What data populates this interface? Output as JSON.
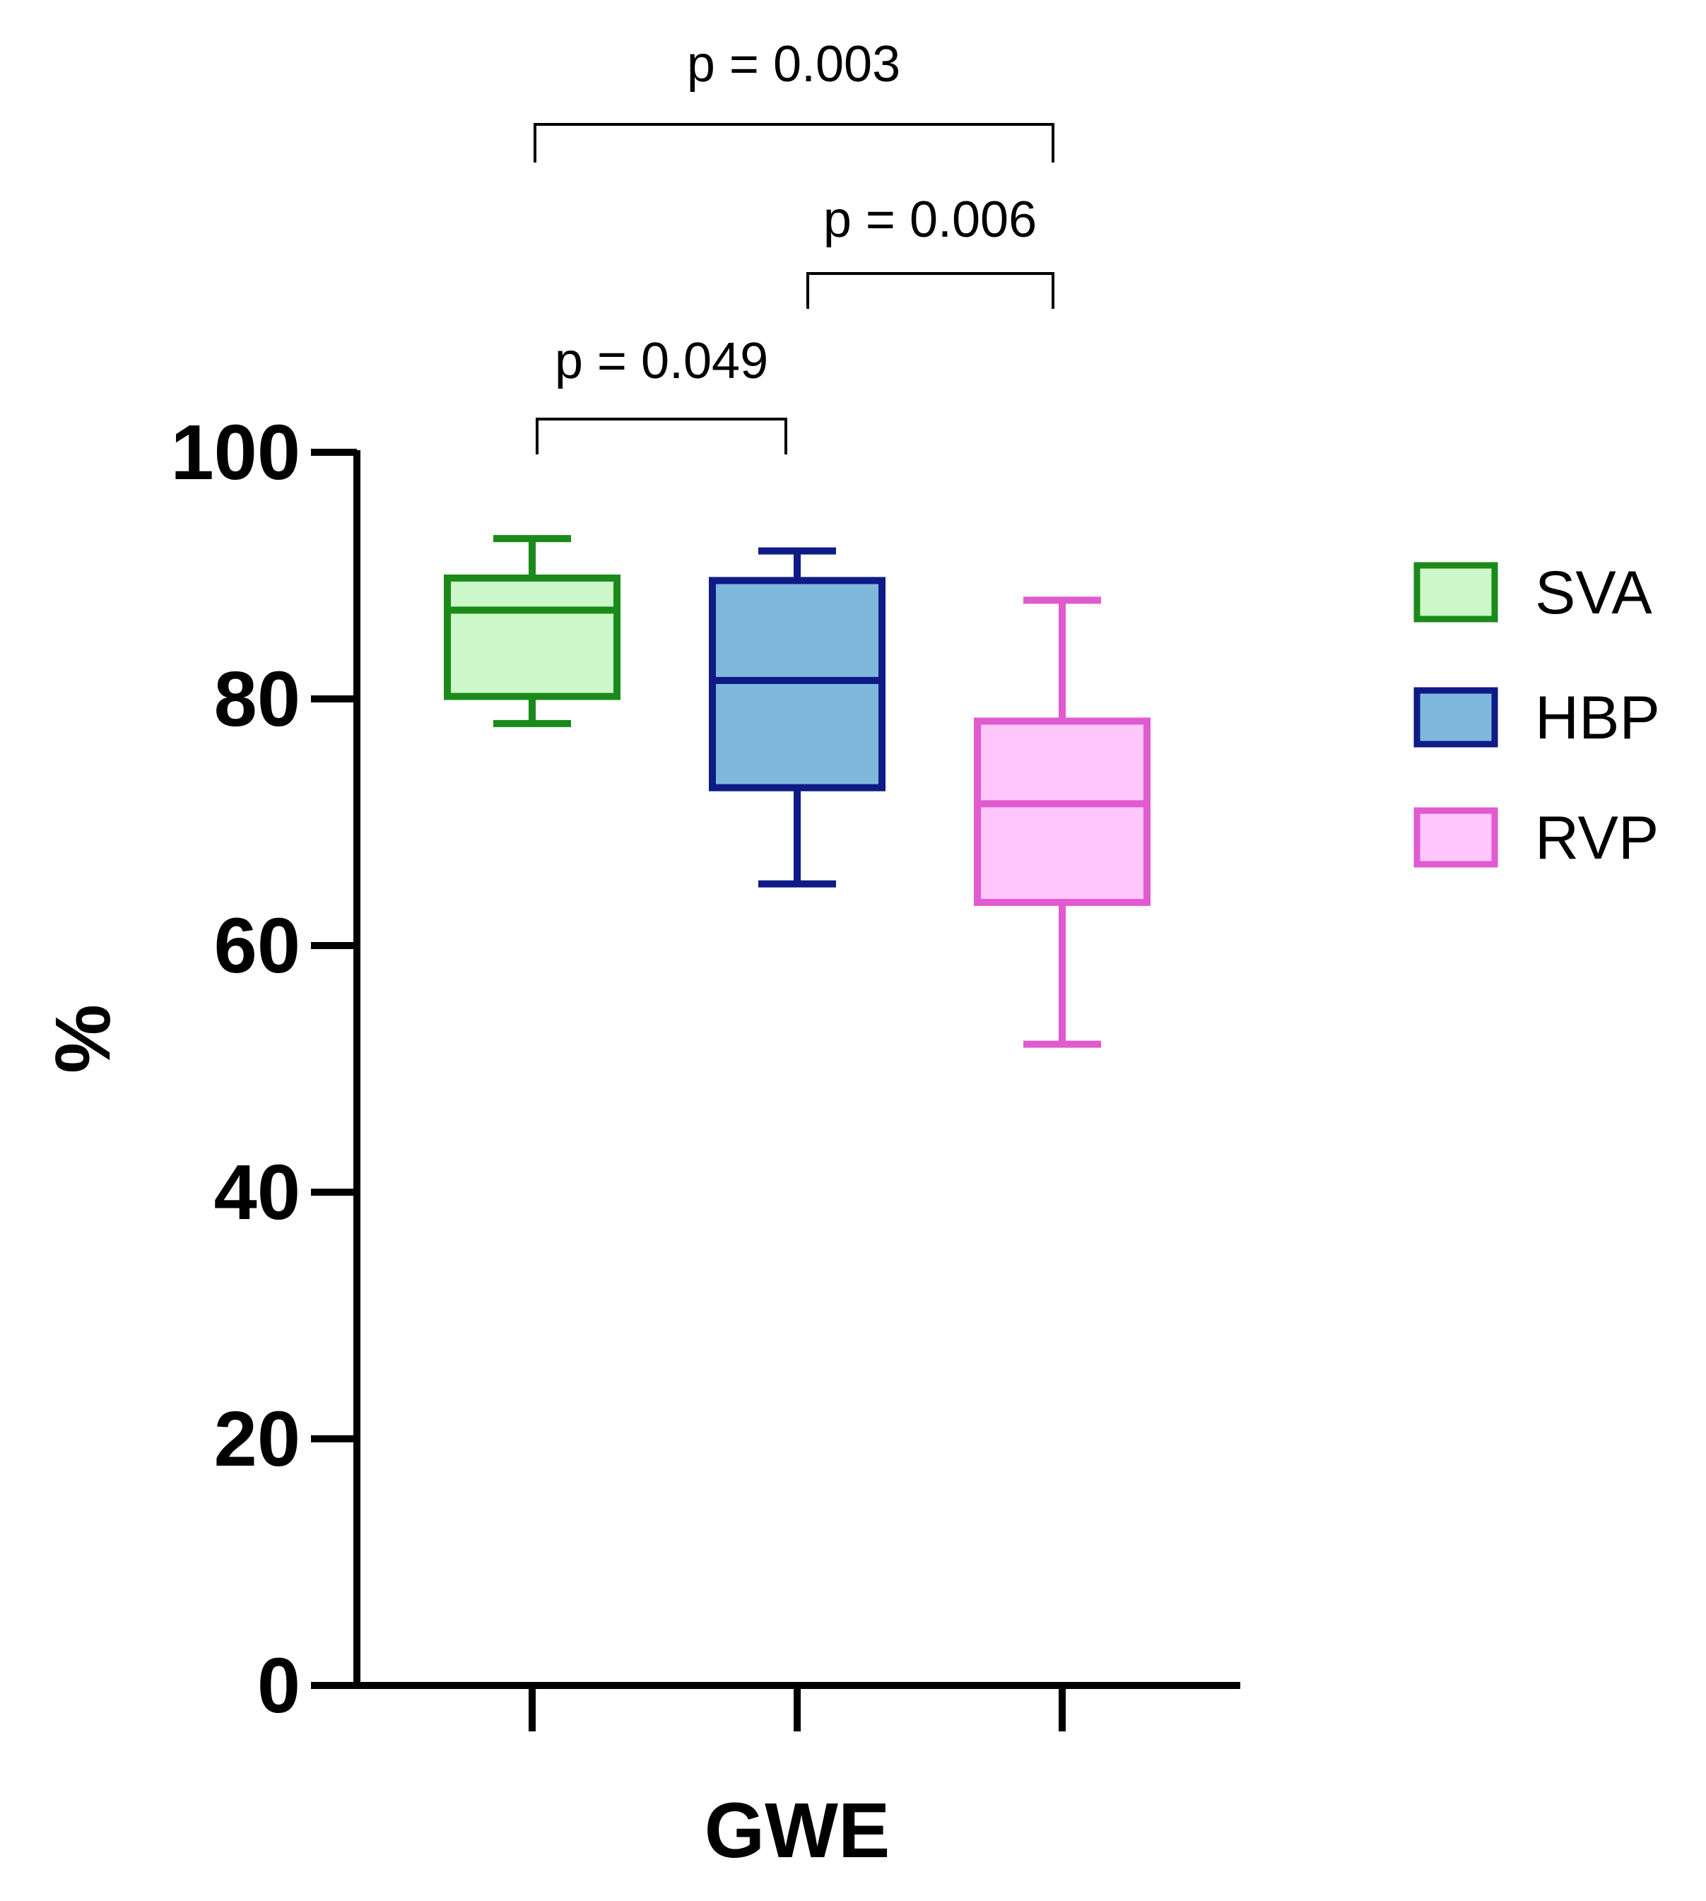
{
  "chart_data": {
    "type": "box",
    "title": "",
    "xlabel": "GWE",
    "ylabel": "%",
    "ylim": [
      0,
      100
    ],
    "yticks": [
      0,
      20,
      40,
      60,
      80,
      100
    ],
    "grid": false,
    "legend_position": "right",
    "series": [
      {
        "name": "SVA",
        "min": 78,
        "q1": 80.2,
        "median": 87.2,
        "q3": 89.8,
        "max": 93,
        "stroke": "#1a8a1a",
        "fill": "#ccf7c8"
      },
      {
        "name": "HBP",
        "min": 65,
        "q1": 72.8,
        "median": 81.5,
        "q3": 89.6,
        "max": 92,
        "stroke": "#0e1a85",
        "fill": "#7fb8dd"
      },
      {
        "name": "RVP",
        "min": 52,
        "q1": 63.5,
        "median": 71.5,
        "q3": 78.2,
        "max": 88,
        "stroke": "#e05ad0",
        "fill": "#ffc6fb"
      }
    ],
    "comparisons": [
      {
        "groups": [
          "SVA",
          "HBP"
        ],
        "label": "p = 0.049"
      },
      {
        "groups": [
          "HBP",
          "RVP"
        ],
        "label": "p = 0.006"
      },
      {
        "groups": [
          "SVA",
          "RVP"
        ],
        "label": "p = 0.003"
      }
    ]
  }
}
